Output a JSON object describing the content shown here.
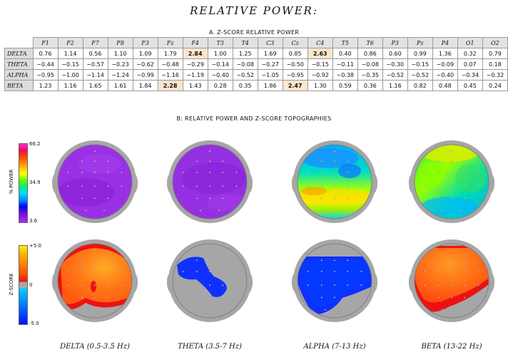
{
  "title": "RELATIVE POWER:",
  "section_a": "A. Z-SCORE RELATIVE POWER",
  "section_b": "B: RELATIVE POWER AND Z-SCORE TOPOGRAPHIES",
  "table": {
    "columns": [
      "F1",
      "F2",
      "F7",
      "F8",
      "F3",
      "Fz",
      "F4",
      "T3",
      "T4",
      "C3",
      "Cz",
      "C4",
      "T5",
      "T6",
      "P3",
      "Pz",
      "P4",
      "O1",
      "O2"
    ],
    "rows": [
      {
        "label": "DELTA",
        "values": [
          "0.76",
          "1.14",
          "0.56",
          "1.10",
          "1.09",
          "1.79",
          "2.84",
          "1.00",
          "1.25",
          "1.69",
          "0.85",
          "2.63",
          "0.40",
          "0.86",
          "0.60",
          "0.99",
          "1.36",
          "0.32",
          "0.79"
        ],
        "highlight": [
          6,
          11
        ]
      },
      {
        "label": "THETA",
        "values": [
          "−0.44",
          "−0.15",
          "−0.57",
          "−0.23",
          "−0.62",
          "−0.48",
          "−0.29",
          "−0.14",
          "−0.08",
          "−0.27",
          "−0.50",
          "−0.15",
          "−0.11",
          "−0.08",
          "−0.30",
          "−0.15",
          "−0.09",
          "0.07",
          "0.18"
        ],
        "highlight": []
      },
      {
        "label": "ALPHA",
        "values": [
          "−0.95",
          "−1.00",
          "−1.14",
          "−1.24",
          "−0.99",
          "−1.16",
          "−1.19",
          "−0.40",
          "−0.52",
          "−1.05",
          "−0.95",
          "−0.92",
          "−0.38",
          "−0.35",
          "−0.52",
          "−0.52",
          "−0.40",
          "−0.34",
          "−0.32"
        ],
        "highlight": []
      },
      {
        "label": "BETA",
        "values": [
          "1.23",
          "1.16",
          "1.65",
          "1.61",
          "1.84",
          "2.28",
          "1.43",
          "0.28",
          "0.35",
          "1.86",
          "2.47",
          "1.30",
          "0.59",
          "0.36",
          "1.16",
          "0.82",
          "0.48",
          "0.45",
          "0.24"
        ],
        "highlight": [
          5,
          10
        ]
      }
    ]
  },
  "power_scale": {
    "label": "% POWER",
    "max": "66.2",
    "mid": "34.9",
    "min": "3.6"
  },
  "zscore_scale": {
    "label": "Z-SCORE",
    "max": "+5.0",
    "mid": "0",
    "min": "-5.0"
  },
  "bands": [
    "DELTA (0.5-3.5 Hz)",
    "THETA (3.5-7 Hz)",
    "ALPHA (7-13 Hz)",
    "BETA (13-22 Hz)"
  ],
  "colors": {
    "purple": "#9a2be0",
    "zorange": "#ff6a1a",
    "zred": "#ee1111",
    "zblue": "#1030ff",
    "head_gray": "#a6a6a6"
  }
}
